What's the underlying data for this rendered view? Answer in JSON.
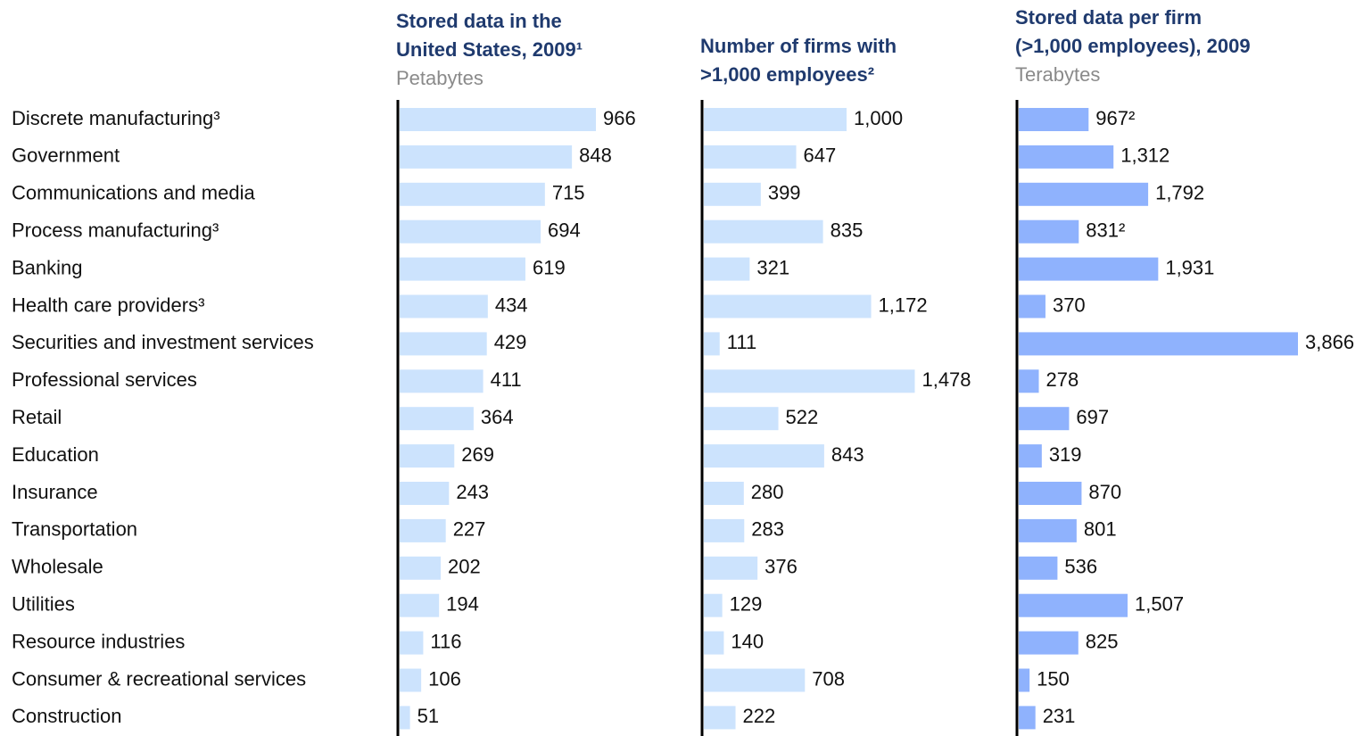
{
  "chart_data": [
    {
      "type": "bar",
      "orientation": "horizontal",
      "title": [
        "Stored data in the",
        "United States, 2009¹"
      ],
      "subtitle": "Petabytes",
      "categories": [
        "Discrete manufacturing³",
        "Government",
        "Communications and media",
        "Process manufacturing³",
        "Banking",
        "Health care providers³",
        "Securities and investment services",
        "Professional services",
        "Retail",
        "Education",
        "Insurance",
        "Transportation",
        "Wholesale",
        "Utilities",
        "Resource industries",
        "Consumer & recreational services",
        "Construction"
      ],
      "values": [
        966,
        848,
        715,
        694,
        619,
        434,
        429,
        411,
        364,
        269,
        243,
        227,
        202,
        194,
        116,
        106,
        51
      ],
      "color": "#cce3fd"
    },
    {
      "type": "bar",
      "orientation": "horizontal",
      "title": [
        "Number of firms with",
        ">1,000 employees²"
      ],
      "values": [
        1000,
        647,
        399,
        835,
        321,
        1172,
        111,
        1478,
        522,
        843,
        280,
        283,
        376,
        129,
        140,
        708,
        222
      ],
      "value_labels": [
        "1,000",
        "647",
        "399",
        "835",
        "321",
        "1,172",
        "111",
        "1,478",
        "522",
        "843",
        "280",
        "283",
        "376",
        "129",
        "140",
        "708",
        "222"
      ],
      "color": "#cce3fd"
    },
    {
      "type": "bar",
      "orientation": "horizontal",
      "title": [
        "Stored data per firm",
        "(>1,000 employees), 2009"
      ],
      "subtitle": "Terabytes",
      "values": [
        967,
        1312,
        1792,
        831,
        1931,
        370,
        3866,
        278,
        697,
        319,
        870,
        801,
        536,
        1507,
        825,
        150,
        231
      ],
      "value_labels": [
        "967²",
        "1,312",
        "1,792",
        "831²",
        "1,931",
        "370",
        "3,866",
        "278",
        "697",
        "319",
        "870",
        "801",
        "536",
        "1,507",
        "825",
        "150",
        "231"
      ],
      "color": "#8fb2fd"
    }
  ]
}
